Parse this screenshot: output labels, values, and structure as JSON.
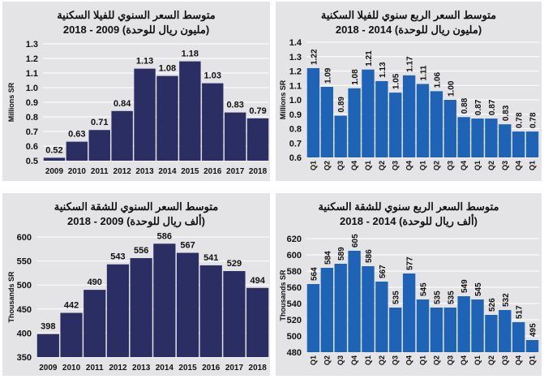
{
  "colors": {
    "annual": "#2a2e63",
    "quarterly": "#1f63b6",
    "panel": "#e4e4e6",
    "grid": "#ffffff"
  },
  "chart_data": [
    {
      "type": "bar",
      "title": "متوسط السعر السنوي للفيلا السكنية",
      "subtitle": "(مليون ريال للوحدة) 2009 - 2018",
      "ylabel": "Millions SR",
      "categories": [
        "2009",
        "2010",
        "2011",
        "2012",
        "2013",
        "2014",
        "2015",
        "2016",
        "2017",
        "2018"
      ],
      "values": [
        0.52,
        0.63,
        0.71,
        0.84,
        1.13,
        1.08,
        1.18,
        1.03,
        0.83,
        0.79
      ],
      "value_labels": [
        "0.52",
        "0.63",
        "0.71",
        "0.84",
        "1.13",
        "1.08",
        "1.18",
        "1.03",
        "0.83",
        "0.79"
      ],
      "ylim": [
        0.5,
        1.3
      ],
      "yticks": [
        "0.5",
        "0.6",
        "0.7",
        "0.8",
        "0.9",
        "1.0",
        "1.1",
        "1.2",
        "1.3"
      ],
      "grid": true,
      "color_key": "annual"
    },
    {
      "type": "bar",
      "title": "متوسط السعر الربع سنوي للفيلا السكنية",
      "subtitle": "(مليون ريال للوحدة) 2014 - 2018",
      "ylabel": "Millions SR",
      "categories": [
        "Q1",
        "Q2",
        "Q3",
        "Q4",
        "Q1",
        "Q2",
        "Q3",
        "Q4",
        "Q1",
        "Q2",
        "Q3",
        "Q4",
        "Q1",
        "Q2",
        "Q3",
        "Q4",
        "Q1"
      ],
      "values": [
        1.22,
        1.09,
        0.89,
        1.08,
        1.21,
        1.13,
        1.05,
        1.17,
        1.11,
        1.06,
        1.0,
        0.88,
        0.87,
        0.87,
        0.83,
        0.78,
        0.78
      ],
      "value_labels": [
        "1.22",
        "1.09",
        "0.89",
        "1.08",
        "1.21",
        "1.13",
        "1.05",
        "1.17",
        "1.11",
        "1.06",
        "1.00",
        "0.88",
        "0.87",
        "0.87",
        "0.83",
        "0.78",
        "0.78"
      ],
      "ylim": [
        0.6,
        1.4
      ],
      "yticks": [
        "0.6",
        "0.7",
        "0.8",
        "0.9",
        "1.0",
        "1.1",
        "1.2",
        "1.3",
        "1.4"
      ],
      "grid": true,
      "color_key": "quarterly"
    },
    {
      "type": "bar",
      "title": "متوسط السعر السنوي للشقة السكنية",
      "subtitle": "(ألف ريال للوحدة) 2009 - 2018",
      "ylabel": "Thousands SR",
      "categories": [
        "2009",
        "2010",
        "2011",
        "2012",
        "2013",
        "2014",
        "2015",
        "2016",
        "2017",
        "2018"
      ],
      "values": [
        398,
        442,
        490,
        543,
        556,
        586,
        567,
        541,
        529,
        494
      ],
      "value_labels": [
        "398",
        "442",
        "490",
        "543",
        "556",
        "586",
        "567",
        "541",
        "529",
        "494"
      ],
      "ylim": [
        350,
        600
      ],
      "yticks": [
        "350",
        "400",
        "450",
        "500",
        "550",
        "600"
      ],
      "grid": true,
      "color_key": "annual"
    },
    {
      "type": "bar",
      "title": "متوسط السعر الربع سنوي للشقة السكنية",
      "subtitle": "(ألف ريال للوحدة) 2014 - 2018",
      "ylabel": "Thousands SR",
      "categories": [
        "Q1",
        "Q2",
        "Q3",
        "Q4",
        "Q1",
        "Q2",
        "Q3",
        "Q4",
        "Q1",
        "Q2",
        "Q3",
        "Q4",
        "Q1",
        "Q2",
        "Q3",
        "Q4",
        "Q1"
      ],
      "values": [
        564,
        584,
        589,
        605,
        586,
        567,
        535,
        577,
        545,
        535,
        535,
        549,
        545,
        526,
        532,
        517,
        495
      ],
      "value_labels": [
        "564",
        "584",
        "589",
        "605",
        "586",
        "567",
        "535",
        "577",
        "545",
        "535",
        "535",
        "549",
        "545",
        "526",
        "532",
        "517",
        "495"
      ],
      "ylim": [
        480,
        620
      ],
      "yticks": [
        "480",
        "500",
        "520",
        "540",
        "560",
        "580",
        "600",
        "620"
      ],
      "grid": true,
      "color_key": "quarterly"
    }
  ]
}
